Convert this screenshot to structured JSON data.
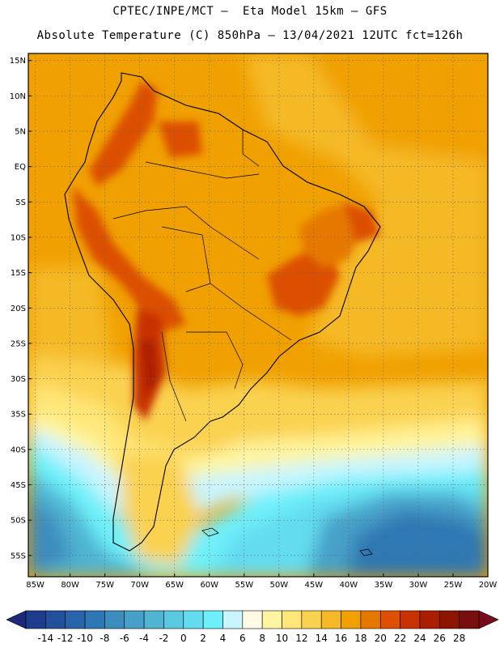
{
  "header": {
    "line1": "CPTEC/INPE/MCT –  Eta Model 15km – GFS",
    "line2": "Absolute Temperature (C) 850hPa – 13/04/2021 12UTC fct=126h"
  },
  "map": {
    "lon_range": [
      -86,
      -20
    ],
    "lat_range": [
      -58,
      16
    ],
    "lat_labels": [
      "15N",
      "10N",
      "5N",
      "EQ",
      "5S",
      "10S",
      "15S",
      "20S",
      "25S",
      "30S",
      "35S",
      "40S",
      "45S",
      "50S",
      "55S"
    ],
    "lat_values": [
      15,
      10,
      5,
      0,
      -5,
      -10,
      -15,
      -20,
      -25,
      -30,
      -35,
      -40,
      -45,
      -50,
      -55
    ],
    "lon_labels": [
      "85W",
      "80W",
      "75W",
      "70W",
      "65W",
      "60W",
      "55W",
      "50W",
      "45W",
      "40W",
      "35W",
      "30W",
      "25W",
      "20W"
    ],
    "lon_values": [
      -85,
      -80,
      -75,
      -70,
      -65,
      -60,
      -55,
      -50,
      -45,
      -40,
      -35,
      -30,
      -25,
      -20
    ],
    "gridlines": "dotted"
  },
  "colorbar": {
    "labels": [
      "-14",
      "-12",
      "-10",
      "-8",
      "-6",
      "-4",
      "-2",
      "0",
      "2",
      "4",
      "6",
      "8",
      "10",
      "12",
      "14",
      "16",
      "18",
      "20",
      "22",
      "24",
      "26",
      "28"
    ],
    "colors": [
      "#1e3c8c",
      "#23509b",
      "#2864aa",
      "#2d78b4",
      "#3c8cbe",
      "#46a0c8",
      "#50b4d2",
      "#5ac8e1",
      "#64dcf0",
      "#6ef0fa",
      "#c8f5ff",
      "#fffae6",
      "#fff5a0",
      "#ffe678",
      "#fad250",
      "#f5b928",
      "#f0a000",
      "#e67800",
      "#dc5000",
      "#c83200",
      "#aa1e00",
      "#8c1400",
      "#780f0f"
    ],
    "left_arrow": "#1e2878",
    "right_arrow": "#780a1e"
  }
}
